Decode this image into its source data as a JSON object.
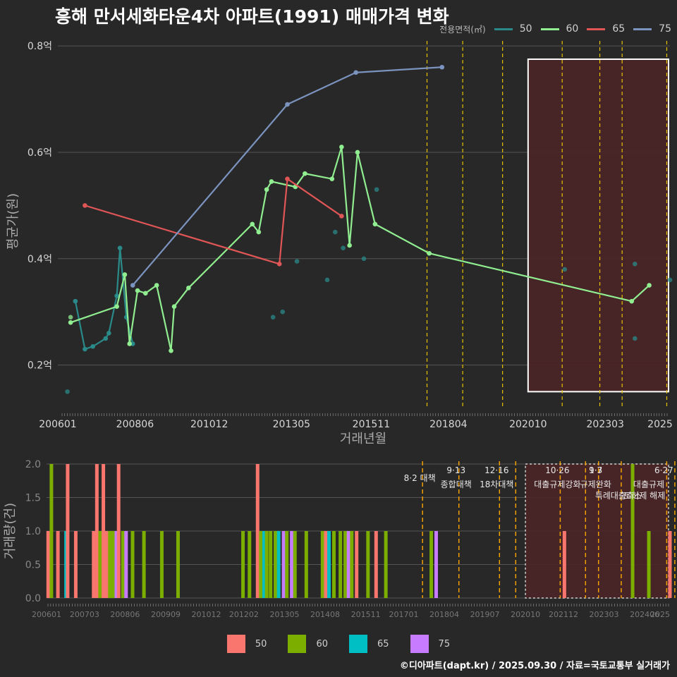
{
  "title": "흥해 만서세화타운4차 아파트(1991) 매매가격 변화",
  "source": "©디아파트(dapt.kr) / 2025.09.30 / 자료=국토교통부 실거래가",
  "legend": {
    "title": "전용면적(㎡)",
    "items": [
      {
        "label": "50",
        "line_color": "#2a8a8a",
        "bar_color": "#f8766d"
      },
      {
        "label": "60",
        "line_color": "#90ee90",
        "bar_color": "#7cae00"
      },
      {
        "label": "65",
        "line_color": "#e05555",
        "bar_color": "#00bfc4"
      },
      {
        "label": "75",
        "line_color": "#7b93bf",
        "bar_color": "#c77cff"
      }
    ]
  },
  "chart_data": [
    {
      "type": "line",
      "ylabel": "평균가(원)",
      "xlabel": "거래년월",
      "x_range": [
        2006.0,
        2025.2
      ],
      "ylim": [
        0.12,
        0.82
      ],
      "yticks": [
        {
          "v": 0.2,
          "label": "0.2억"
        },
        {
          "v": 0.4,
          "label": "0.4억"
        },
        {
          "v": 0.6,
          "label": "0.6억"
        },
        {
          "v": 0.8,
          "label": "0.8억"
        }
      ],
      "xticks": [
        {
          "v": 2006.0,
          "label": "200601"
        },
        {
          "v": 2008.42,
          "label": "200806"
        },
        {
          "v": 2010.75,
          "label": "201012"
        },
        {
          "v": 2013.33,
          "label": "201305"
        },
        {
          "v": 2015.83,
          "label": "201511"
        },
        {
          "v": 2018.25,
          "label": "201804"
        },
        {
          "v": 2020.75,
          "label": "202010"
        },
        {
          "v": 2023.17,
          "label": "202303"
        },
        {
          "v": 2025.1,
          "label": "2025"
        }
      ],
      "policy_lines": [
        2017.58,
        2018.7,
        2019.95,
        2021.82,
        2023.0,
        2023.7,
        2025.1,
        2025.45
      ],
      "highlight_range": [
        2020.75,
        2025.2
      ],
      "series": [
        {
          "name": "50",
          "points": [
            [
              2006.55,
              0.32
            ],
            [
              2006.85,
              0.23
            ],
            [
              2007.1,
              0.235
            ],
            [
              2007.5,
              0.25
            ],
            [
              2007.6,
              0.26
            ],
            [
              2007.85,
              0.33
            ],
            [
              2007.95,
              0.42
            ],
            [
              2008.15,
              0.29
            ],
            [
              2008.35,
              0.24
            ]
          ]
        },
        {
          "name": "50 scatter",
          "scatter": true,
          "points": [
            [
              2006.3,
              0.15
            ],
            [
              2012.75,
              0.29
            ],
            [
              2013.05,
              0.3
            ],
            [
              2013.5,
              0.395
            ],
            [
              2014.45,
              0.36
            ],
            [
              2014.7,
              0.45
            ],
            [
              2014.95,
              0.42
            ],
            [
              2015.6,
              0.4
            ],
            [
              2016.0,
              0.53
            ],
            [
              2021.9,
              0.38
            ],
            [
              2024.1,
              0.39
            ],
            [
              2024.1,
              0.25
            ],
            [
              2025.2,
              0.36
            ]
          ]
        },
        {
          "name": "60",
          "points": [
            [
              2006.4,
              0.28
            ],
            [
              2007.85,
              0.31
            ],
            [
              2008.1,
              0.37
            ],
            [
              2008.25,
              0.24
            ],
            [
              2008.5,
              0.34
            ],
            [
              2008.75,
              0.335
            ],
            [
              2009.1,
              0.35
            ],
            [
              2009.55,
              0.227
            ],
            [
              2009.65,
              0.31
            ],
            [
              2010.1,
              0.345
            ],
            [
              2012.1,
              0.465
            ],
            [
              2012.3,
              0.45
            ],
            [
              2012.55,
              0.53
            ],
            [
              2012.7,
              0.545
            ],
            [
              2013.45,
              0.535
            ],
            [
              2013.75,
              0.56
            ],
            [
              2014.6,
              0.55
            ],
            [
              2014.9,
              0.61
            ],
            [
              2015.15,
              0.425
            ],
            [
              2015.4,
              0.6
            ],
            [
              2015.95,
              0.465
            ],
            [
              2017.65,
              0.41
            ],
            [
              2024.0,
              0.32
            ],
            [
              2024.55,
              0.35
            ]
          ]
        },
        {
          "name": "60 scatter",
          "scatter": true,
          "points": [
            [
              2006.4,
              0.29
            ]
          ]
        },
        {
          "name": "65",
          "points": [
            [
              2006.85,
              0.5
            ],
            [
              2012.95,
              0.39
            ],
            [
              2013.2,
              0.55
            ],
            [
              2014.9,
              0.48
            ]
          ]
        },
        {
          "name": "75",
          "points": [
            [
              2008.35,
              0.35
            ],
            [
              2013.2,
              0.69
            ],
            [
              2015.35,
              0.75
            ],
            [
              2018.05,
              0.76
            ]
          ]
        }
      ]
    },
    {
      "type": "bar",
      "ylabel": "거래량(건)",
      "x_range": [
        2006.0,
        2025.2
      ],
      "ylim": [
        0,
        2.0
      ],
      "yticks": [
        {
          "v": 0.0,
          "label": "0.0"
        },
        {
          "v": 0.5,
          "label": "0.5"
        },
        {
          "v": 1.0,
          "label": "1.0"
        },
        {
          "v": 1.5,
          "label": "1.5"
        },
        {
          "v": 2.0,
          "label": "2.0"
        }
      ],
      "xticks": [
        {
          "v": 2006.0,
          "label": "200601"
        },
        {
          "v": 2007.17,
          "label": "200703"
        },
        {
          "v": 2008.42,
          "label": "200806"
        },
        {
          "v": 2009.67,
          "label": "200909"
        },
        {
          "v": 2010.92,
          "label": "201012"
        },
        {
          "v": 2012.08,
          "label": "201202"
        },
        {
          "v": 2013.33,
          "label": "201305"
        },
        {
          "v": 2014.58,
          "label": "201408"
        },
        {
          "v": 2015.83,
          "label": "201511"
        },
        {
          "v": 2017.0,
          "label": "201701"
        },
        {
          "v": 2018.25,
          "label": "201804"
        },
        {
          "v": 2019.5,
          "label": "201907"
        },
        {
          "v": 2020.75,
          "label": "202010"
        },
        {
          "v": 2021.92,
          "label": "202112"
        },
        {
          "v": 2023.17,
          "label": "202303"
        },
        {
          "v": 2024.42,
          "label": "202406"
        },
        {
          "v": 2025.1,
          "label": "2025"
        }
      ],
      "highlight_range": [
        2020.75,
        2025.2
      ],
      "policy_lines": [
        2017.58,
        2018.7,
        2019.95,
        2020.45,
        2021.82,
        2022.6,
        2023.0,
        2023.7,
        2025.1,
        2025.35
      ],
      "annotations": [
        {
          "x": 2017.58,
          "top": "",
          "bottom": "8·2 대책",
          "row": 1
        },
        {
          "x": 2018.7,
          "top": "9·13",
          "bottom": "종합대책",
          "row": 0
        },
        {
          "x": 2019.95,
          "top": "12·16",
          "bottom": "18차대책",
          "row": 0
        },
        {
          "x": 2021.82,
          "top": "10·26",
          "bottom": "대출규제강화",
          "row": 0
        },
        {
          "x": 2023.0,
          "top": "1·3",
          "bottom": "규제완화",
          "row": 0
        },
        {
          "x": 2023.7,
          "top": "",
          "bottom": "특례대출축소",
          "row": 2
        },
        {
          "x": 2023.0,
          "top": "9·7",
          "bottom": "",
          "row": 0
        },
        {
          "x": 2025.1,
          "top": "6·27",
          "bottom": "대출규제",
          "row": 0
        },
        {
          "x": 2024.5,
          "top": "",
          "bottom": "토허제 해제",
          "row": 2
        }
      ],
      "bars": [
        {
          "x": 2006.05,
          "v": 1,
          "s": "50"
        },
        {
          "x": 2006.15,
          "v": 2,
          "s": "60"
        },
        {
          "x": 2006.35,
          "v": 1,
          "s": "50"
        },
        {
          "x": 2006.6,
          "v": 1,
          "s": "65"
        },
        {
          "x": 2006.65,
          "v": 2,
          "s": "50"
        },
        {
          "x": 2006.9,
          "v": 1,
          "s": "50"
        },
        {
          "x": 2007.45,
          "v": 1,
          "s": "50"
        },
        {
          "x": 2007.55,
          "v": 2,
          "s": "50"
        },
        {
          "x": 2007.65,
          "v": 1,
          "s": "60"
        },
        {
          "x": 2007.75,
          "v": 2,
          "s": "50"
        },
        {
          "x": 2007.85,
          "v": 1,
          "s": "50"
        },
        {
          "x": 2007.95,
          "v": 1,
          "s": "60"
        },
        {
          "x": 2008.05,
          "v": 1,
          "s": "60"
        },
        {
          "x": 2008.15,
          "v": 1,
          "s": "75"
        },
        {
          "x": 2008.22,
          "v": 2,
          "s": "50"
        },
        {
          "x": 2008.35,
          "v": 1,
          "s": "60"
        },
        {
          "x": 2008.45,
          "v": 1,
          "s": "75"
        },
        {
          "x": 2008.65,
          "v": 1,
          "s": "60"
        },
        {
          "x": 2009.0,
          "v": 1,
          "s": "60"
        },
        {
          "x": 2009.55,
          "v": 1,
          "s": "60"
        },
        {
          "x": 2010.05,
          "v": 1,
          "s": "60"
        },
        {
          "x": 2012.05,
          "v": 1,
          "s": "60"
        },
        {
          "x": 2012.25,
          "v": 1,
          "s": "60"
        },
        {
          "x": 2012.5,
          "v": 2,
          "s": "50"
        },
        {
          "x": 2012.6,
          "v": 1,
          "s": "60"
        },
        {
          "x": 2012.7,
          "v": 1,
          "s": "65"
        },
        {
          "x": 2012.78,
          "v": 1,
          "s": "60"
        },
        {
          "x": 2012.9,
          "v": 1,
          "s": "60"
        },
        {
          "x": 2013.05,
          "v": 1,
          "s": "60"
        },
        {
          "x": 2013.15,
          "v": 1,
          "s": "65"
        },
        {
          "x": 2013.3,
          "v": 1,
          "s": "75"
        },
        {
          "x": 2013.4,
          "v": 1,
          "s": "60"
        },
        {
          "x": 2013.55,
          "v": 1,
          "s": "75"
        },
        {
          "x": 2013.65,
          "v": 1,
          "s": "60"
        },
        {
          "x": 2014.0,
          "v": 1,
          "s": "60"
        },
        {
          "x": 2014.5,
          "v": 1,
          "s": "60"
        },
        {
          "x": 2014.6,
          "v": 1,
          "s": "50"
        },
        {
          "x": 2014.7,
          "v": 1,
          "s": "65"
        },
        {
          "x": 2014.85,
          "v": 1,
          "s": "60"
        },
        {
          "x": 2015.05,
          "v": 1,
          "s": "60"
        },
        {
          "x": 2015.2,
          "v": 1,
          "s": "60"
        },
        {
          "x": 2015.3,
          "v": 1,
          "s": "75"
        },
        {
          "x": 2015.4,
          "v": 1,
          "s": "60"
        },
        {
          "x": 2015.55,
          "v": 1,
          "s": "50"
        },
        {
          "x": 2015.9,
          "v": 1,
          "s": "60"
        },
        {
          "x": 2016.15,
          "v": 1,
          "s": "50"
        },
        {
          "x": 2016.45,
          "v": 1,
          "s": "60"
        },
        {
          "x": 2017.85,
          "v": 1,
          "s": "60"
        },
        {
          "x": 2018.0,
          "v": 1,
          "s": "75"
        },
        {
          "x": 2021.95,
          "v": 1,
          "s": "50"
        },
        {
          "x": 2024.05,
          "v": 2,
          "s": "60"
        },
        {
          "x": 2024.55,
          "v": 1,
          "s": "60"
        },
        {
          "x": 2025.2,
          "v": 1,
          "s": "50"
        }
      ]
    }
  ]
}
